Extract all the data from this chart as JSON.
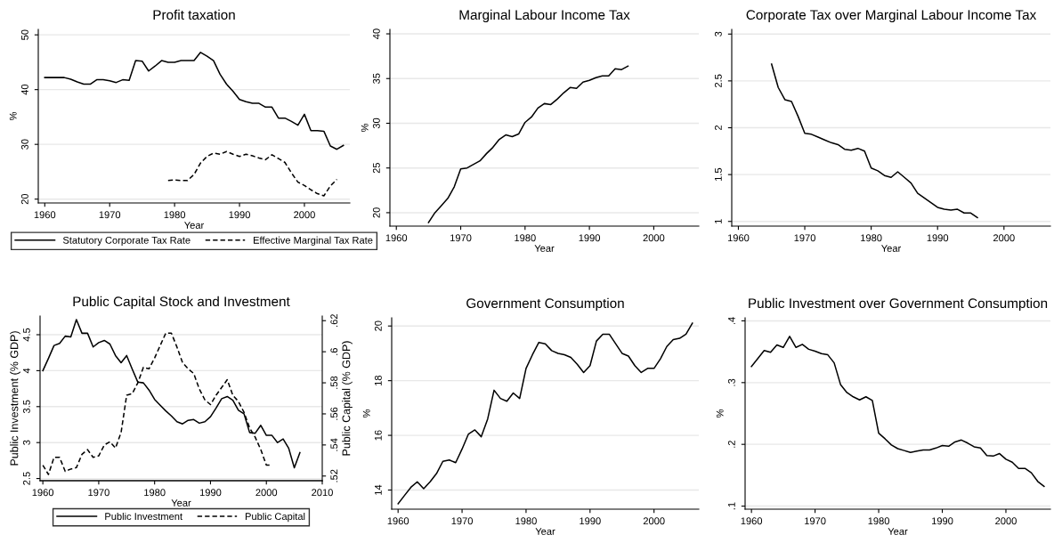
{
  "chart_data": [
    {
      "type": "line",
      "title": "Profit taxation",
      "xlabel": "Year",
      "ylabel": "%",
      "x": [
        1960,
        1961,
        1962,
        1963,
        1964,
        1965,
        1966,
        1967,
        1968,
        1969,
        1970,
        1971,
        1972,
        1973,
        1974,
        1975,
        1976,
        1977,
        1978,
        1979,
        1980,
        1981,
        1982,
        1983,
        1984,
        1985,
        1986,
        1987,
        1988,
        1989,
        1990,
        1991,
        1992,
        1993,
        1994,
        1995,
        1996,
        1997,
        1998,
        1999,
        2000,
        2001,
        2002,
        2003,
        2004,
        2005,
        2006
      ],
      "xlim": [
        1959,
        2007
      ],
      "xticks": [
        1960,
        1970,
        1980,
        1990,
        2000
      ],
      "ylim": [
        19.3,
        51
      ],
      "yticks": [
        20,
        30,
        40,
        50
      ],
      "grid": "y",
      "legend": "bottom",
      "series": [
        {
          "name": "Statutory Corporate Tax Rate",
          "color": "#000000",
          "line_style": "solid",
          "values": [
            42.2,
            42.2,
            42.2,
            42.2,
            41.9,
            41.4,
            41.0,
            41.0,
            41.8,
            41.8,
            41.6,
            41.3,
            41.8,
            41.7,
            45.3,
            45.2,
            43.4,
            44.3,
            45.3,
            45.0,
            45.0,
            45.3,
            45.3,
            45.3,
            46.8,
            46.1,
            45.3,
            42.8,
            41.0,
            39.7,
            38.2,
            37.8,
            37.5,
            37.5,
            36.8,
            36.8,
            34.8,
            34.8,
            34.2,
            33.5,
            35.5,
            32.5,
            32.5,
            32.4,
            29.7,
            29.1,
            29.8
          ]
        },
        {
          "name": "Effective Marginal Tax Rate",
          "color": "#000000",
          "line_style": "dashed",
          "values": [
            null,
            null,
            null,
            null,
            null,
            null,
            null,
            null,
            null,
            null,
            null,
            null,
            null,
            null,
            null,
            null,
            null,
            null,
            null,
            23.4,
            23.5,
            23.4,
            23.4,
            24.5,
            26.6,
            27.8,
            28.4,
            28.2,
            28.7,
            28.2,
            27.8,
            28.2,
            27.9,
            27.5,
            27.2,
            28.1,
            27.4,
            26.7,
            24.8,
            23.1,
            22.5,
            21.7,
            21.0,
            20.6,
            22.4,
            23.6,
            null
          ]
        }
      ]
    },
    {
      "type": "line",
      "title": "Marginal Labour Income Tax",
      "xlabel": "Year",
      "ylabel": "%",
      "xlim": [
        1959,
        2007
      ],
      "xticks": [
        1960,
        1970,
        1980,
        1990,
        2000
      ],
      "ylim": [
        18.5,
        40.5
      ],
      "yticks": [
        20,
        25,
        30,
        35,
        40
      ],
      "grid": "y",
      "series": [
        {
          "color": "#000000",
          "line_style": "solid",
          "x": [
            1965,
            1966,
            1967,
            1968,
            1969,
            1970,
            1971,
            1972,
            1973,
            1974,
            1975,
            1976,
            1977,
            1978,
            1979,
            1980,
            1981,
            1982,
            1983,
            1984,
            1985,
            1986,
            1987,
            1988,
            1989,
            1990,
            1991,
            1992,
            1993,
            1994,
            1995,
            1996
          ],
          "values": [
            18.9,
            20.0,
            20.8,
            21.6,
            22.9,
            24.9,
            25.0,
            25.4,
            25.8,
            26.6,
            27.3,
            28.2,
            28.7,
            28.5,
            28.8,
            30.1,
            30.7,
            31.7,
            32.2,
            32.1,
            32.7,
            33.4,
            34.0,
            33.9,
            34.6,
            34.8,
            35.1,
            35.3,
            35.3,
            36.1,
            36.0,
            36.4
          ]
        }
      ]
    },
    {
      "type": "line",
      "title": "Corporate Tax over Marginal Labour Income Tax",
      "xlabel": "Year",
      "xlim": [
        1959,
        2007
      ],
      "xticks": [
        1960,
        1970,
        1980,
        1990,
        2000
      ],
      "ylim": [
        0.95,
        3.05
      ],
      "yticks": [
        1,
        1.5,
        2,
        2.5,
        3
      ],
      "grid": "y",
      "series": [
        {
          "color": "#000000",
          "line_style": "solid",
          "x": [
            1965,
            1966,
            1967,
            1968,
            1969,
            1970,
            1971,
            1972,
            1973,
            1974,
            1975,
            1976,
            1977,
            1978,
            1979,
            1980,
            1981,
            1982,
            1983,
            1984,
            1985,
            1986,
            1987,
            1988,
            1989,
            1990,
            1991,
            1992,
            1993,
            1994,
            1995,
            1996
          ],
          "values": [
            2.68,
            2.43,
            2.3,
            2.28,
            2.12,
            1.94,
            1.93,
            1.9,
            1.87,
            1.84,
            1.82,
            1.77,
            1.76,
            1.78,
            1.75,
            1.57,
            1.54,
            1.49,
            1.47,
            1.53,
            1.47,
            1.41,
            1.3,
            1.25,
            1.2,
            1.15,
            1.13,
            1.12,
            1.13,
            1.09,
            1.09,
            1.04
          ]
        }
      ]
    },
    {
      "type": "line",
      "title": "Public Capital Stock and Investment",
      "xlabel": "Year",
      "ylabel": "Public Investment (% GDP)",
      "y2label": "Public Capital (% GDP)",
      "x": [
        1960,
        1961,
        1962,
        1963,
        1964,
        1965,
        1966,
        1967,
        1968,
        1969,
        1970,
        1971,
        1972,
        1973,
        1974,
        1975,
        1976,
        1977,
        1978,
        1979,
        1980,
        1981,
        1982,
        1983,
        1984,
        1985,
        1986,
        1987,
        1988,
        1989,
        1990,
        1991,
        1992,
        1993,
        1994,
        1995,
        1996,
        1997,
        1998,
        1999,
        2000,
        2001,
        2002,
        2003,
        2004,
        2005,
        2006
      ],
      "xlim": [
        1959.5,
        2010
      ],
      "xticks": [
        1960,
        1970,
        1980,
        1990,
        2000,
        2010
      ],
      "ylim": [
        2.47,
        4.76
      ],
      "yticks": [
        2.5,
        3,
        3.5,
        4,
        4.5
      ],
      "y2lim": [
        0.517,
        0.623
      ],
      "y2ticks": [
        {
          "value": 0.52,
          "label": ".52"
        },
        {
          "value": 0.54,
          "label": ".54"
        },
        {
          "value": 0.56,
          "label": ".56"
        },
        {
          "value": 0.58,
          "label": ".58"
        },
        {
          "value": 0.6,
          "label": ".6"
        },
        {
          "value": 0.62,
          "label": ".62"
        }
      ],
      "grid": "y",
      "legend": "bottom",
      "series": [
        {
          "name": "Public Investment",
          "color": "#000000",
          "line_style": "solid",
          "values": [
            4.0,
            4.17,
            4.35,
            4.38,
            4.48,
            4.47,
            4.71,
            4.52,
            4.52,
            4.33,
            4.39,
            4.42,
            4.37,
            4.21,
            4.11,
            4.21,
            4.02,
            3.84,
            3.83,
            3.73,
            3.6,
            3.52,
            3.44,
            3.37,
            3.29,
            3.26,
            3.31,
            3.32,
            3.27,
            3.29,
            3.36,
            3.48,
            3.61,
            3.64,
            3.59,
            3.45,
            3.4,
            3.14,
            3.13,
            3.24,
            3.1,
            3.1,
            3.0,
            3.05,
            2.92,
            2.65,
            2.86
          ]
        },
        {
          "name": "Public Capital",
          "color": "#000000",
          "line_style": "dashed",
          "axis": "y2",
          "values": [
            0.527,
            0.521,
            0.532,
            0.532,
            0.523,
            0.5245,
            0.5254,
            0.534,
            0.537,
            0.532,
            0.533,
            0.54,
            0.542,
            0.538,
            0.548,
            0.572,
            0.573,
            0.58,
            0.59,
            0.589,
            0.596,
            0.604,
            0.612,
            0.612,
            0.603,
            0.593,
            0.589,
            0.586,
            0.576,
            0.569,
            0.566,
            0.572,
            0.577,
            0.582,
            0.572,
            0.568,
            0.561,
            0.551,
            0.545,
            0.537,
            0.527,
            0.527,
            null,
            null,
            null,
            null,
            null
          ]
        }
      ]
    },
    {
      "type": "line",
      "title": "Government Consumption",
      "xlabel": "Year",
      "ylabel": "%",
      "x": [
        1960,
        1961,
        1962,
        1963,
        1964,
        1965,
        1966,
        1967,
        1968,
        1969,
        1970,
        1971,
        1972,
        1973,
        1974,
        1975,
        1976,
        1977,
        1978,
        1979,
        1980,
        1981,
        1982,
        1983,
        1984,
        1985,
        1986,
        1987,
        1988,
        1989,
        1990,
        1991,
        1992,
        1993,
        1994,
        1995,
        1996,
        1997,
        1998,
        1999,
        2000,
        2001,
        2002,
        2003,
        2004,
        2005,
        2006
      ],
      "xlim": [
        1959,
        2007
      ],
      "xticks": [
        1960,
        1970,
        1980,
        1990,
        2000
      ],
      "ylim": [
        13.3,
        20.3
      ],
      "yticks": [
        14,
        16,
        18,
        20
      ],
      "grid": "y",
      "series": [
        {
          "color": "#000000",
          "line_style": "solid",
          "values": [
            13.5,
            13.8,
            14.1,
            14.3,
            14.05,
            14.3,
            14.6,
            15.05,
            15.1,
            15.0,
            15.5,
            16.05,
            16.2,
            15.95,
            16.6,
            17.65,
            17.35,
            17.25,
            17.55,
            17.35,
            18.45,
            18.95,
            19.4,
            19.35,
            19.1,
            19.0,
            18.95,
            18.85,
            18.6,
            18.3,
            18.55,
            19.45,
            19.7,
            19.7,
            19.35,
            19.0,
            18.9,
            18.55,
            18.3,
            18.45,
            18.45,
            18.8,
            19.25,
            19.5,
            19.55,
            19.7,
            20.1
          ]
        }
      ]
    },
    {
      "type": "line",
      "title": "Public Investment over Government Consumption",
      "xlabel": "Year",
      "ylabel": "%",
      "x": [
        1960,
        1961,
        1962,
        1963,
        1964,
        1965,
        1966,
        1967,
        1968,
        1969,
        1970,
        1971,
        1972,
        1973,
        1974,
        1975,
        1976,
        1977,
        1978,
        1979,
        1980,
        1981,
        1982,
        1983,
        1984,
        1985,
        1986,
        1987,
        1988,
        1989,
        1990,
        1991,
        1992,
        1993,
        1994,
        1995,
        1996,
        1997,
        1998,
        1999,
        2000,
        2001,
        2002,
        2003,
        2004,
        2005,
        2006
      ],
      "xlim": [
        1959,
        2007
      ],
      "xticks": [
        1960,
        1970,
        1980,
        1990,
        2000
      ],
      "ylim": [
        0.095,
        0.405
      ],
      "yticks": [
        {
          "value": 0.1,
          "label": ".1"
        },
        {
          "value": 0.2,
          "label": ".2"
        },
        {
          "value": 0.3,
          "label": ".3"
        },
        {
          "value": 0.4,
          "label": ".4"
        }
      ],
      "grid": "y",
      "series": [
        {
          "color": "#000000",
          "line_style": "solid",
          "values": [
            0.326,
            0.339,
            0.352,
            0.349,
            0.361,
            0.357,
            0.375,
            0.357,
            0.362,
            0.354,
            0.351,
            0.347,
            0.345,
            0.332,
            0.297,
            0.284,
            0.277,
            0.272,
            0.277,
            0.271,
            0.218,
            0.209,
            0.199,
            0.193,
            0.19,
            0.187,
            0.189,
            0.191,
            0.191,
            0.194,
            0.198,
            0.197,
            0.204,
            0.207,
            0.202,
            0.196,
            0.194,
            0.182,
            0.181,
            0.185,
            0.176,
            0.171,
            0.161,
            0.161,
            0.154,
            0.14,
            0.132
          ]
        }
      ]
    }
  ]
}
